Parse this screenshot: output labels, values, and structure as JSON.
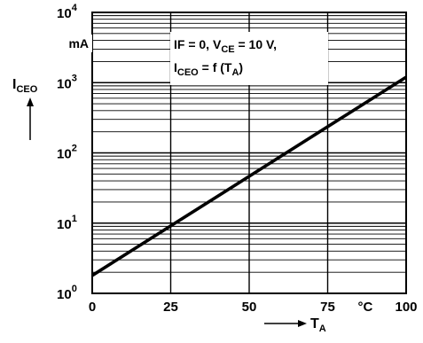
{
  "chart_data": {
    "type": "line",
    "annotation": {
      "line1": {
        "a": "IF = 0, V",
        "sub": "CE",
        "b": " = 10 V,"
      },
      "line2": {
        "a": "I",
        "sub": "CEO",
        "b": " = f (T",
        "sub2": "A",
        "c": ")"
      }
    },
    "ylabel": {
      "main": "I",
      "sub": "CEO"
    },
    "yunit": "mA",
    "xlabel": {
      "main": "T",
      "sub": "A"
    },
    "xunit": "°C",
    "yscale": "log",
    "ylim": [
      1,
      10000
    ],
    "xlim": [
      0,
      100
    ],
    "y_ticks": [
      {
        "base": "10",
        "exp": "0"
      },
      {
        "base": "10",
        "exp": "1"
      },
      {
        "base": "10",
        "exp": "2"
      },
      {
        "base": "10",
        "exp": "3"
      },
      {
        "base": "10",
        "exp": "4"
      }
    ],
    "x_ticks": [
      "0",
      "25",
      "50",
      "75",
      "100"
    ],
    "grid": true,
    "series": [
      {
        "x": [
          0,
          100
        ],
        "y": [
          1.8,
          1200
        ]
      }
    ]
  }
}
